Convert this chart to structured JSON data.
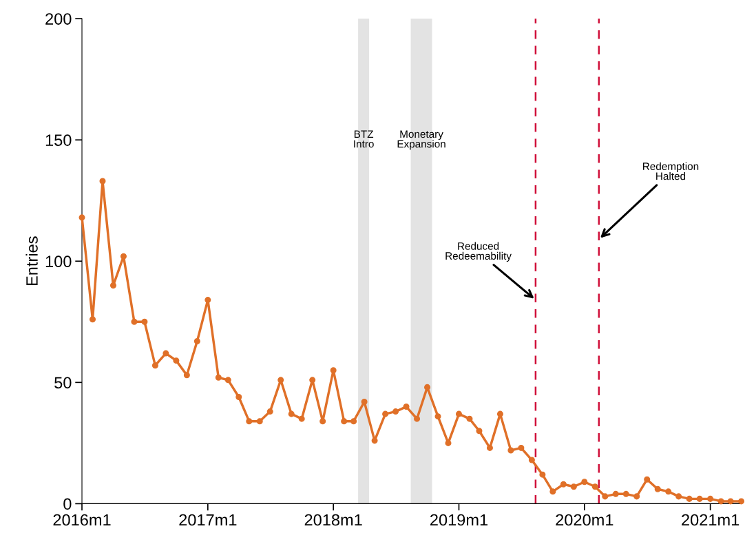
{
  "chart_data": {
    "type": "line",
    "ylabel": "Entries",
    "x": [
      "2016-01",
      "2016-02",
      "2016-03",
      "2016-04",
      "2016-05",
      "2016-06",
      "2016-07",
      "2016-08",
      "2016-09",
      "2016-10",
      "2016-11",
      "2016-12",
      "2017-01",
      "2017-02",
      "2017-03",
      "2017-04",
      "2017-05",
      "2017-06",
      "2017-07",
      "2017-08",
      "2017-09",
      "2017-10",
      "2017-11",
      "2017-12",
      "2018-01",
      "2018-02",
      "2018-03",
      "2018-04",
      "2018-05",
      "2018-06",
      "2018-07",
      "2018-08",
      "2018-09",
      "2018-10",
      "2018-11",
      "2018-12",
      "2019-01",
      "2019-02",
      "2019-03",
      "2019-04",
      "2019-05",
      "2019-06",
      "2019-07",
      "2019-08",
      "2019-09",
      "2019-10",
      "2019-11",
      "2019-12",
      "2020-01",
      "2020-02",
      "2020-03",
      "2020-04",
      "2020-05",
      "2020-06",
      "2020-07",
      "2020-08",
      "2020-09",
      "2020-10",
      "2020-11",
      "2020-12",
      "2021-01",
      "2021-02",
      "2021-03",
      "2021-04"
    ],
    "series": [
      {
        "color": "#e07028",
        "values": [
          118,
          76,
          133,
          90,
          102,
          75,
          75,
          57,
          62,
          59,
          53,
          67,
          84,
          52,
          51,
          44,
          34,
          34,
          38,
          51,
          37,
          35,
          51,
          34,
          55,
          34,
          34,
          42,
          26,
          37,
          38,
          40,
          35,
          48,
          36,
          25,
          37,
          35,
          30,
          23,
          37,
          22,
          23,
          18,
          12,
          5,
          8,
          7,
          9,
          7,
          3,
          4,
          4,
          3,
          10,
          6,
          5,
          3,
          2,
          2,
          2,
          1,
          1,
          1
        ]
      }
    ],
    "xlim": [
      "2016-01",
      "2021-04"
    ],
    "xticks": [
      {
        "value": "2016-01",
        "label": "2016m1"
      },
      {
        "value": "2017-01",
        "label": "2017m1"
      },
      {
        "value": "2018-01",
        "label": "2018m1"
      },
      {
        "value": "2019-01",
        "label": "2019m1"
      },
      {
        "value": "2020-01",
        "label": "2020m1"
      },
      {
        "value": "2021-01",
        "label": "2021m1"
      }
    ],
    "ylim": [
      0,
      200
    ],
    "yticks": [
      0,
      50,
      100,
      150,
      200
    ],
    "marker": "circle",
    "line_style": "solid",
    "grid": false,
    "legend": false,
    "bands": [
      {
        "axis": "x",
        "from": "2018-03-14",
        "to": "2018-04-15",
        "label": "BTZ\nIntro",
        "color": "#e3e3e3"
      },
      {
        "axis": "x",
        "from": "2018-08-14",
        "to": "2018-10-15",
        "label": "Monetary\nExpansion",
        "color": "#e3e3e3"
      }
    ],
    "ref_lines": [
      {
        "axis": "x",
        "value": "2019-08-12",
        "color": "#d0103a",
        "line_style": "dashed",
        "label": "Reduced\nRedeemability"
      },
      {
        "axis": "x",
        "value": "2020-02-12",
        "color": "#d0103a",
        "line_style": "dashed",
        "label": "Redemption\nHalted"
      }
    ]
  }
}
